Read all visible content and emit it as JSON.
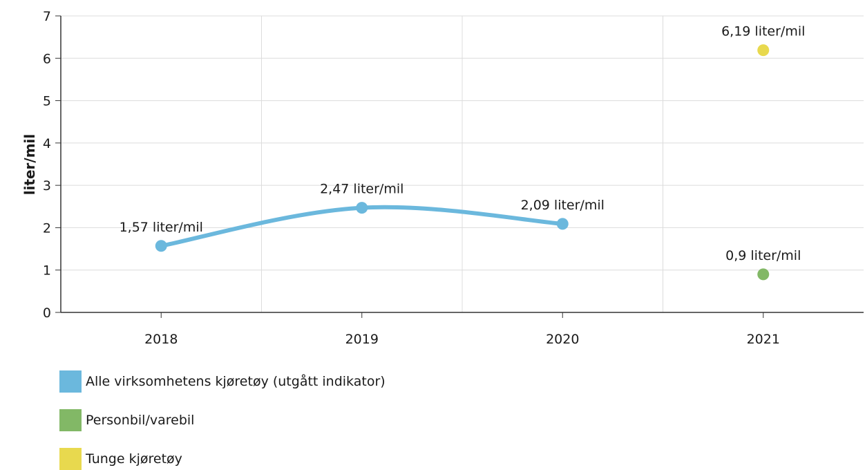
{
  "chart_data": {
    "type": "line",
    "ylabel": "liter/mil",
    "ylim": [
      0,
      7
    ],
    "yticks": [
      0,
      1,
      2,
      3,
      4,
      5,
      6,
      7
    ],
    "categories": [
      "2018",
      "2019",
      "2020",
      "2021"
    ],
    "grid": true,
    "legend_position": "bottom-left",
    "series": [
      {
        "name": "Alle virksomhetens kjøretøy (utgått indikator)",
        "color": "#6bb8dd",
        "points": [
          {
            "x": "2018",
            "y": 1.57,
            "label": "1,57 liter/mil"
          },
          {
            "x": "2019",
            "y": 2.47,
            "label": "2,47 liter/mil"
          },
          {
            "x": "2020",
            "y": 2.09,
            "label": "2,09 liter/mil"
          }
        ]
      },
      {
        "name": "Personbil/varebil",
        "color": "#82b866",
        "points": [
          {
            "x": "2021",
            "y": 0.9,
            "label": "0,9 liter/mil"
          }
        ]
      },
      {
        "name": "Tunge kjøretøy",
        "color": "#e8d94e",
        "points": [
          {
            "x": "2021",
            "y": 6.19,
            "label": "6,19 liter/mil"
          }
        ]
      }
    ]
  }
}
